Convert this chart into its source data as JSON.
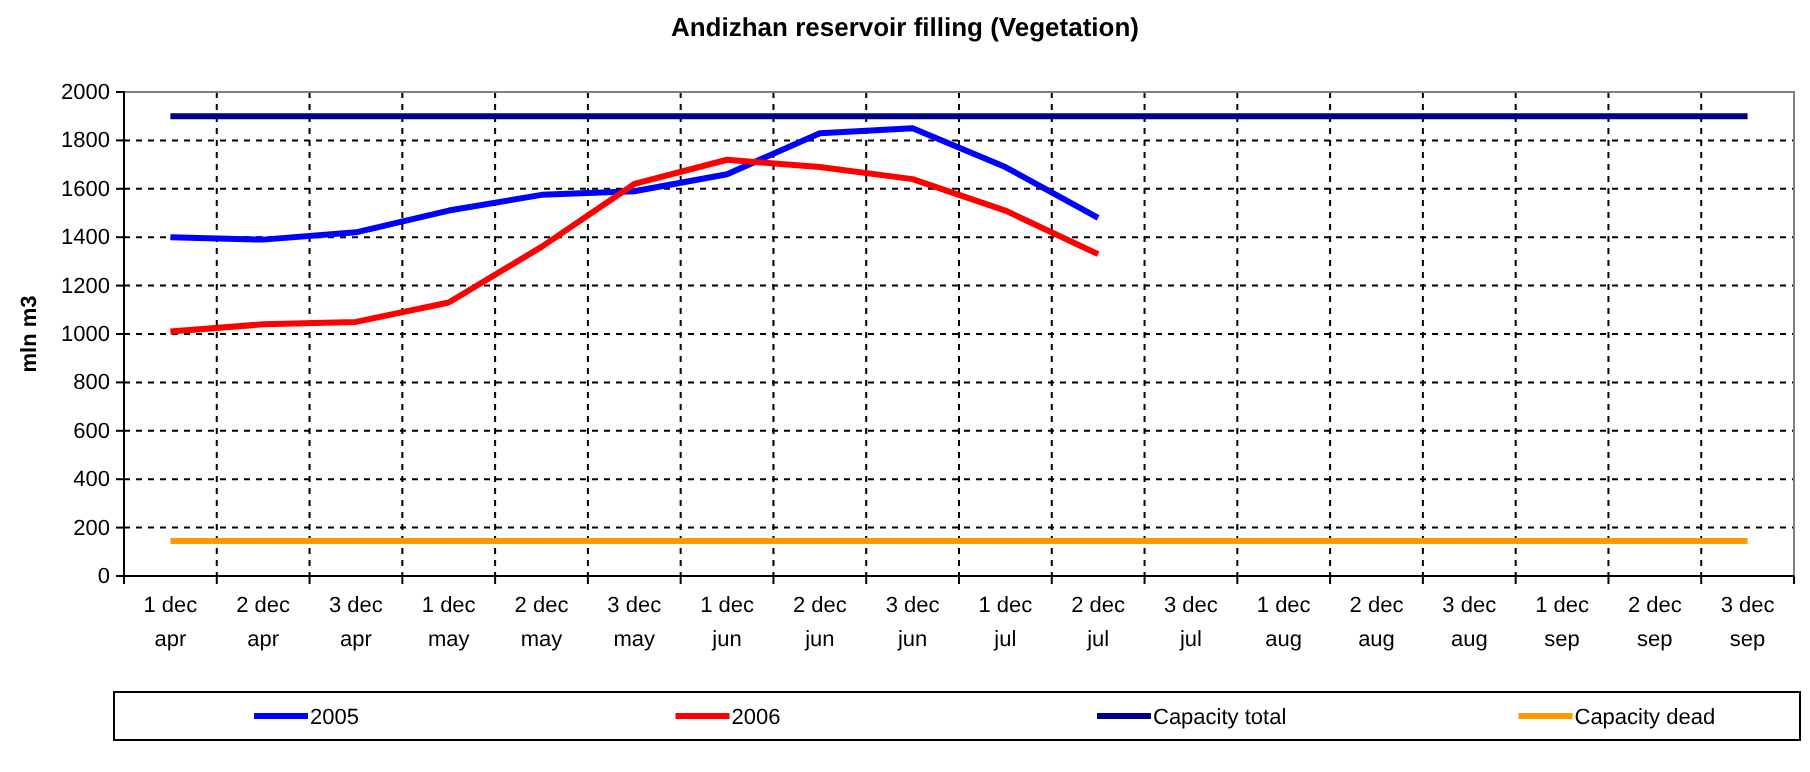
{
  "chart_data": {
    "type": "line",
    "title": "Andizhan reservoir filling  (Vegetation)",
    "ylabel": "mln m3",
    "categories": [
      "1 dec apr",
      "2 dec apr",
      "3 dec apr",
      "1 dec may",
      "2 dec may",
      "3 dec may",
      "1 dec jun",
      "2 dec jun",
      "3 dec jun",
      "1 dec jul",
      "2 dec jul",
      "3 dec jul",
      "1 dec aug",
      "2 dec aug",
      "3 dec aug",
      "1 dec sep",
      "2 dec sep",
      "3 dec sep"
    ],
    "series": [
      {
        "name": "2005",
        "color": "#0000ff",
        "values": [
          1400,
          1390,
          1420,
          1510,
          1575,
          1590,
          1660,
          1830,
          1850,
          1690,
          1480,
          null,
          null,
          null,
          null,
          null,
          null,
          null
        ]
      },
      {
        "name": "2006",
        "color": "#ff0000",
        "values": [
          1010,
          1040,
          1050,
          1130,
          1360,
          1620,
          1720,
          1690,
          1640,
          1510,
          1330,
          null,
          null,
          null,
          null,
          null,
          null,
          null
        ]
      },
      {
        "name": "Capacity total",
        "color": "#000080",
        "values": [
          1900,
          1900,
          1900,
          1900,
          1900,
          1900,
          1900,
          1900,
          1900,
          1900,
          1900,
          1900,
          1900,
          1900,
          1900,
          1900,
          1900,
          1900
        ]
      },
      {
        "name": "Capacity dead",
        "color": "#ff9900",
        "values": [
          145,
          145,
          145,
          145,
          145,
          145,
          145,
          145,
          145,
          145,
          145,
          145,
          145,
          145,
          145,
          145,
          145,
          145
        ]
      }
    ],
    "ylim": [
      0,
      2000
    ],
    "yticks": [
      0,
      200,
      400,
      600,
      800,
      1000,
      1200,
      1400,
      1600,
      1800,
      2000
    ],
    "grid": true,
    "legend": "bottom",
    "marker": "none",
    "line_style": "solid"
  }
}
